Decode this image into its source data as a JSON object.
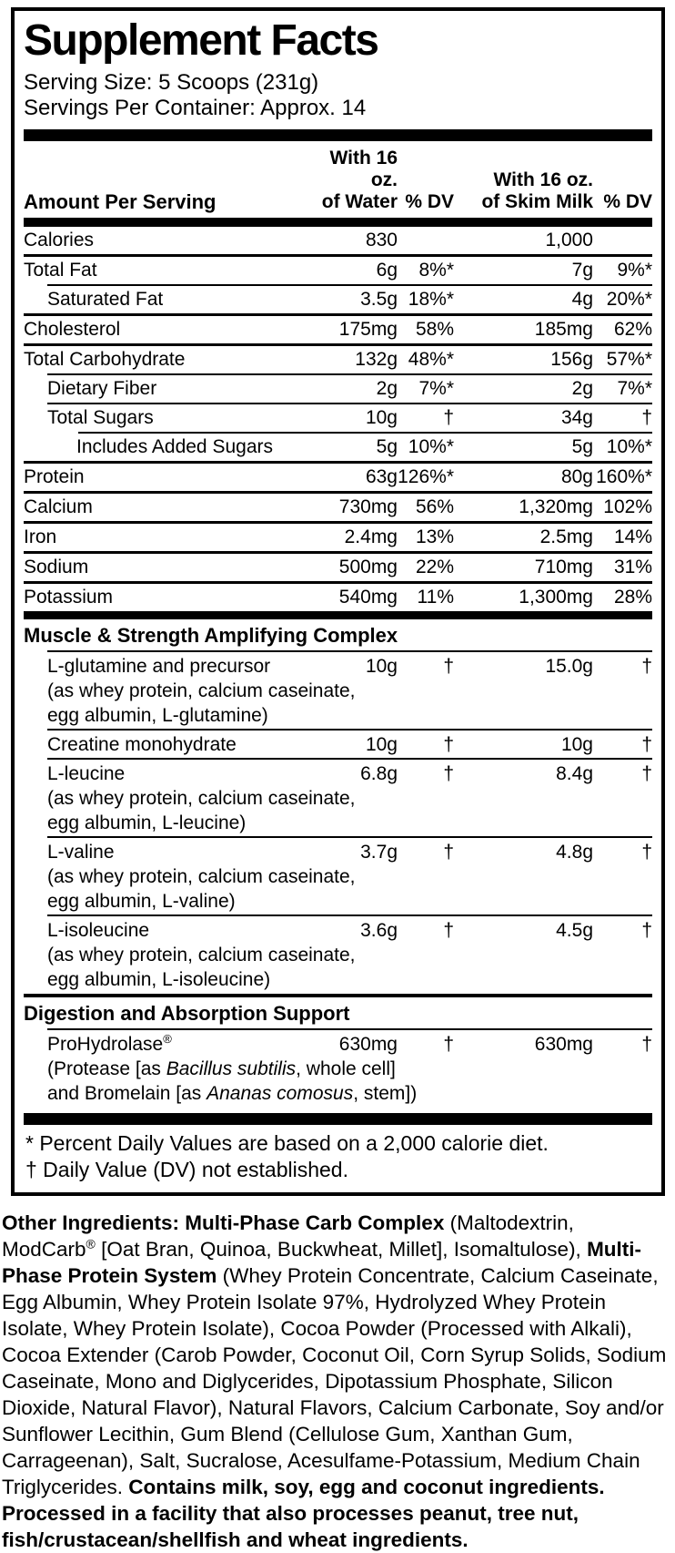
{
  "title": "Supplement Facts",
  "serving_size": "Serving Size: 5 Scoops (231g)",
  "servings_per_container": "Servings Per Container: Approx. 14",
  "columns": {
    "amount_label": "Amount Per Serving",
    "water": [
      "With 16 oz.",
      "of Water"
    ],
    "dv_water": "% DV",
    "milk": [
      "With 16 oz.",
      "of Skim Milk"
    ],
    "dv_milk": "% DV"
  },
  "main_rows": [
    {
      "name": "Calories",
      "indent": 0,
      "water": "830",
      "water_dv": "",
      "milk": "1,000",
      "milk_dv": "",
      "sep": "full"
    },
    {
      "name": "Total Fat",
      "indent": 0,
      "water": "6g",
      "water_dv": "8%*",
      "milk": "7g",
      "milk_dv": "9%*",
      "sep": "ind1"
    },
    {
      "name": "Saturated Fat",
      "indent": 1,
      "water": "3.5g",
      "water_dv": "18%*",
      "milk": "4g",
      "milk_dv": "20%*",
      "sep": "full"
    },
    {
      "name": "Cholesterol",
      "indent": 0,
      "water": "175mg",
      "water_dv": "58%",
      "milk": "185mg",
      "milk_dv": "62%",
      "sep": "full"
    },
    {
      "name": "Total Carbohydrate",
      "indent": 0,
      "water": "132g",
      "water_dv": "48%*",
      "milk": "156g",
      "milk_dv": "57%*",
      "sep": "ind1"
    },
    {
      "name": "Dietary Fiber",
      "indent": 1,
      "water": "2g",
      "water_dv": "7%*",
      "milk": "2g",
      "milk_dv": "7%*",
      "sep": "ind1"
    },
    {
      "name": "Total Sugars",
      "indent": 1,
      "water": "10g",
      "water_dv": "†",
      "milk": "34g",
      "milk_dv": "†",
      "sep": "ind2"
    },
    {
      "name": "Includes Added Sugars",
      "indent": 2,
      "water": "5g",
      "water_dv": "10%*",
      "milk": "5g",
      "milk_dv": "10%*",
      "sep": "full"
    },
    {
      "name": "Protein",
      "indent": 0,
      "water": "63g",
      "water_dv": "126%*",
      "milk": "80g",
      "milk_dv": "160%*",
      "sep": "full"
    },
    {
      "name": "Calcium",
      "indent": 0,
      "water": "730mg",
      "water_dv": "56%",
      "milk": "1,320mg",
      "milk_dv": "102%",
      "sep": "full"
    },
    {
      "name": "Iron",
      "indent": 0,
      "water": "2.4mg",
      "water_dv": "13%",
      "milk": "2.5mg",
      "milk_dv": "14%",
      "sep": "full"
    },
    {
      "name": "Sodium",
      "indent": 0,
      "water": "500mg",
      "water_dv": "22%",
      "milk": "710mg",
      "milk_dv": "31%",
      "sep": "full"
    },
    {
      "name": "Potassium",
      "indent": 0,
      "water": "540mg",
      "water_dv": "11%",
      "milk": "1,300mg",
      "milk_dv": "28%",
      "sep": "none"
    }
  ],
  "sections": [
    {
      "heading": "Muscle & Strength Amplifying Complex",
      "items": [
        {
          "name": "L-glutamine and precursor",
          "water": "10g",
          "water_dv": "†",
          "milk": "15.0g",
          "milk_dv": "†",
          "details": [
            [
              {
                "t": "(as whey protein, calcium caseinate,"
              }
            ],
            [
              {
                "t": "egg albumin, L-glutamine)"
              }
            ]
          ]
        },
        {
          "name": "Creatine monohydrate",
          "water": "10g",
          "water_dv": "†",
          "milk": "10g",
          "milk_dv": "†",
          "details": []
        },
        {
          "name": "L-leucine",
          "water": "6.8g",
          "water_dv": "†",
          "milk": "8.4g",
          "milk_dv": "†",
          "details": [
            [
              {
                "t": "(as whey protein, calcium caseinate,"
              }
            ],
            [
              {
                "t": "egg albumin, L-leucine)"
              }
            ]
          ]
        },
        {
          "name": "L-valine",
          "water": "3.7g",
          "water_dv": "†",
          "milk": "4.8g",
          "milk_dv": "†",
          "details": [
            [
              {
                "t": "(as whey protein, calcium caseinate,"
              }
            ],
            [
              {
                "t": "egg albumin, L-valine)"
              }
            ]
          ]
        },
        {
          "name": "L-isoleucine",
          "water": "3.6g",
          "water_dv": "†",
          "milk": "4.5g",
          "milk_dv": "†",
          "details": [
            [
              {
                "t": "(as whey protein, calcium caseinate,"
              }
            ],
            [
              {
                "t": "egg albumin, L-isoleucine)"
              }
            ]
          ]
        }
      ]
    },
    {
      "heading": "Digestion and Absorption Support",
      "items": [
        {
          "name": "ProHydrolase",
          "name_sup": "®",
          "water": "630mg",
          "water_dv": "†",
          "milk": "630mg",
          "milk_dv": "†",
          "details": [
            [
              {
                "t": "(Protease [as "
              },
              {
                "t": "Bacillus subtilis",
                "i": true
              },
              {
                "t": ", whole cell]"
              }
            ],
            [
              {
                "t": "and Bromelain [as "
              },
              {
                "t": "Ananas comosus",
                "i": true
              },
              {
                "t": ", stem])"
              }
            ]
          ]
        }
      ]
    }
  ],
  "footnotes": [
    "* Percent Daily Values are based on a 2,000 calorie diet.",
    "† Daily Value (DV) not established."
  ],
  "other_ingredients_segments": [
    {
      "t": "Other Ingredients: ",
      "b": true
    },
    {
      "t": "Multi-Phase Carb Complex ",
      "b": true
    },
    {
      "t": "(Maltodextrin, ModCarb"
    },
    {
      "t": "®",
      "sup": true
    },
    {
      "t": " [Oat Bran, Quinoa, Buckwheat, Millet], Isomaltulose), "
    },
    {
      "t": "Multi-Phase Protein System ",
      "b": true
    },
    {
      "t": "(Whey Protein Concentrate, Calcium Caseinate, Egg Albumin, Whey Protein Isolate 97%, Hydrolyzed Whey Protein Isolate, Whey Protein Isolate), Cocoa Powder (Processed with Alkali), Cocoa Extender (Carob Powder, Coconut Oil, Corn Syrup Solids, Sodium Caseinate, Mono and Diglycerides, Dipotassium Phosphate, Silicon Dioxide, Natural Flavor), Natural Flavors, Calcium Carbonate, Soy and/or Sunflower Lecithin, Gum Blend (Cellulose Gum, Xanthan Gum, Carrageenan), Salt, Sucralose, Acesulfame-Potassium, Medium Chain Triglycerides. "
    },
    {
      "t": "Contains milk, soy, egg and coconut ingredients. Processed in a facility that also processes peanut, tree nut, fish/crustacean/shellfish and wheat ingredients.",
      "b": true
    }
  ],
  "colors": {
    "ink": "#000000",
    "paper": "#ffffff"
  }
}
